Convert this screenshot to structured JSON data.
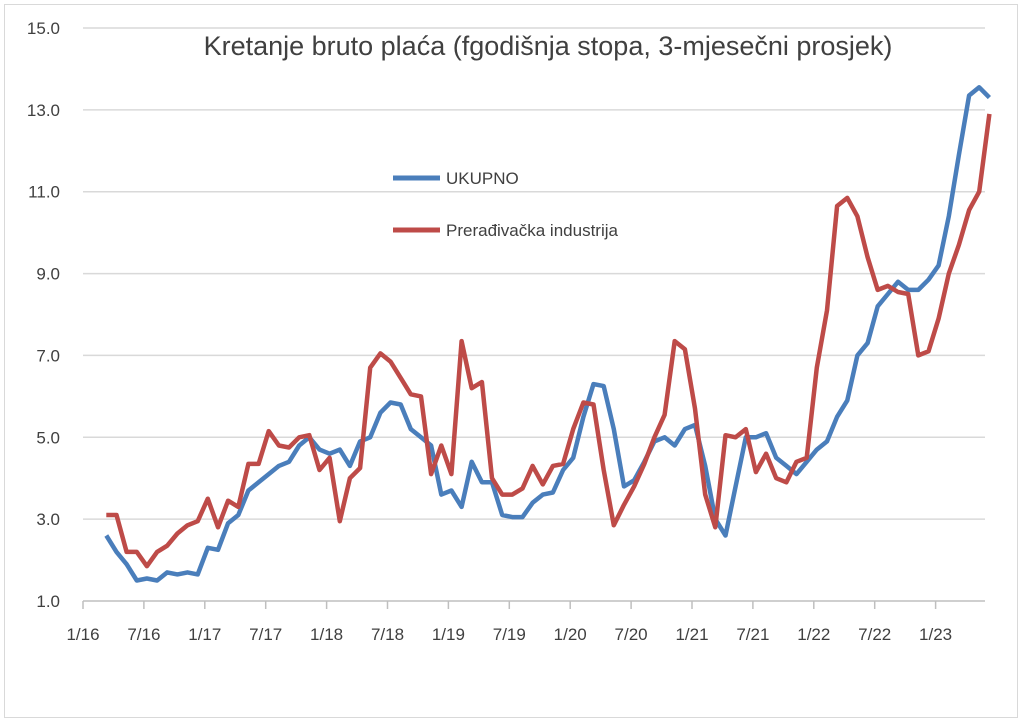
{
  "chart_data": {
    "type": "line",
    "title": "Kretanje bruto plaća (fgodišnja stopa, 3-mjesečni prosjek)",
    "xlabel": "",
    "ylabel": "",
    "ylim": [
      1.0,
      15.0
    ],
    "yticks": [
      "1.0",
      "3.0",
      "5.0",
      "7.0",
      "9.0",
      "11.0",
      "13.0",
      "15.0"
    ],
    "xticks": [
      "1/16",
      "7/16",
      "1/17",
      "7/17",
      "1/18",
      "7/18",
      "1/19",
      "7/19",
      "1/20",
      "7/20",
      "1/21",
      "7/21",
      "1/22",
      "7/22",
      "1/23"
    ],
    "x_start": "3/16",
    "x_end": "6/23",
    "grid": true,
    "legend_position": "left-center",
    "series": [
      {
        "name": "UKUPNO",
        "color": "#4a7ebb",
        "values": [
          2.6,
          2.2,
          1.9,
          1.5,
          1.55,
          1.5,
          1.7,
          1.65,
          1.7,
          1.65,
          2.3,
          2.25,
          2.9,
          3.1,
          3.7,
          3.9,
          4.1,
          4.3,
          4.4,
          4.8,
          5.0,
          4.7,
          4.6,
          4.7,
          4.3,
          4.9,
          5.0,
          5.6,
          5.85,
          5.8,
          5.2,
          5.0,
          4.8,
          3.6,
          3.7,
          3.3,
          4.4,
          3.9,
          3.9,
          3.1,
          3.05,
          3.05,
          3.4,
          3.6,
          3.65,
          4.2,
          4.5,
          5.5,
          6.3,
          6.25,
          5.2,
          3.8,
          3.95,
          4.4,
          4.9,
          5.0,
          4.8,
          5.2,
          5.3,
          4.3,
          3.0,
          2.6,
          3.8,
          5.0,
          5.0,
          5.1,
          4.5,
          4.3,
          4.1,
          4.4,
          4.7,
          4.9,
          5.5,
          5.9,
          7.0,
          7.3,
          8.2,
          8.5,
          8.8,
          8.6,
          8.6,
          8.85,
          9.2,
          10.4,
          11.9,
          13.35,
          13.55,
          13.3
        ]
      },
      {
        "name": "Prerađivačka industrija",
        "color": "#be4b48",
        "values": [
          3.1,
          3.1,
          2.2,
          2.2,
          1.85,
          2.2,
          2.35,
          2.65,
          2.85,
          2.95,
          3.5,
          2.8,
          3.45,
          3.3,
          4.35,
          4.35,
          5.15,
          4.8,
          4.75,
          5.0,
          5.05,
          4.2,
          4.5,
          2.95,
          4.0,
          4.25,
          6.7,
          7.05,
          6.85,
          6.45,
          6.05,
          6.0,
          4.1,
          4.8,
          4.1,
          7.35,
          6.2,
          6.35,
          4.0,
          3.6,
          3.6,
          3.75,
          4.3,
          3.85,
          4.3,
          4.35,
          5.2,
          5.85,
          5.8,
          4.2,
          2.85,
          3.35,
          3.8,
          4.35,
          5.0,
          5.55,
          7.35,
          7.15,
          5.7,
          3.6,
          2.8,
          5.05,
          5.0,
          5.2,
          4.15,
          4.6,
          4.0,
          3.9,
          4.4,
          4.5,
          6.7,
          8.1,
          10.65,
          10.85,
          10.4,
          9.4,
          8.6,
          8.7,
          8.55,
          8.5,
          7.0,
          7.1,
          7.9,
          9.0,
          9.7,
          10.55,
          11.0,
          12.9
        ]
      }
    ]
  }
}
